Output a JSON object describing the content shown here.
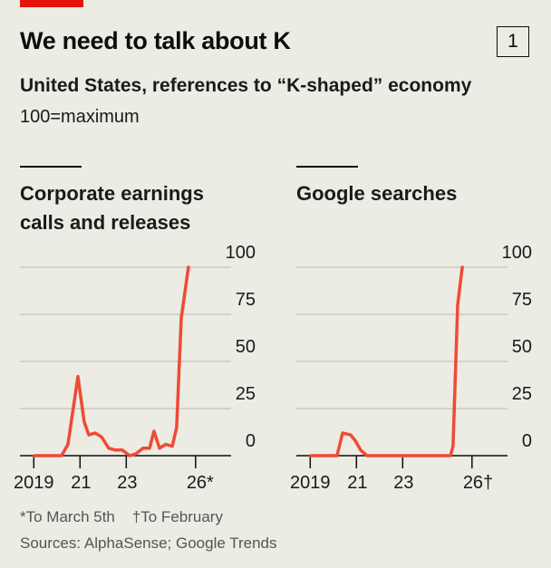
{
  "header": {
    "title": "We need to talk about K",
    "number": "1",
    "subtitle": "United States, references to “K-shaped” economy",
    "unit": "100=maximum"
  },
  "chart_data": [
    {
      "type": "line",
      "title": "Corporate earnings calls and releases",
      "x": [
        2019.03,
        2020.2,
        2020.48,
        2020.91,
        2021.18,
        2021.38,
        2021.65,
        2021.93,
        2022.24,
        2022.52,
        2022.83,
        2023.15,
        2023.42,
        2023.73,
        2024.01,
        2024.2,
        2024.44,
        2024.71,
        2024.99,
        2025.18,
        2025.38,
        2025.69
      ],
      "series": [
        {
          "color": "#ef4b33",
          "values": [
            0,
            0,
            6,
            42,
            18,
            11,
            12,
            10,
            4,
            3,
            3,
            0,
            1,
            4,
            4,
            13,
            4,
            6,
            5,
            15,
            73,
            100
          ]
        }
      ],
      "xlim": [
        2018.4,
        2026.36
      ],
      "xticks": [
        {
          "value": 2019,
          "label": "2019"
        },
        {
          "value": 2021,
          "label": "21"
        },
        {
          "value": 2023,
          "label": "23"
        },
        {
          "value": 2026,
          "label": "26*"
        }
      ],
      "ylim": [
        0,
        100
      ],
      "yticks": [
        0,
        25,
        50,
        75,
        100
      ],
      "grid": true
    },
    {
      "type": "line",
      "title": "Google searches",
      "x": [
        2019.03,
        2020.16,
        2020.4,
        2020.75,
        2020.95,
        2021.18,
        2021.46,
        2025.07,
        2025.18,
        2025.38,
        2025.58
      ],
      "series": [
        {
          "color": "#ef4b33",
          "values": [
            0,
            0,
            12,
            11,
            8,
            3,
            0,
            0,
            5,
            80,
            100
          ]
        }
      ],
      "xlim": [
        2018.4,
        2026.36
      ],
      "xticks": [
        {
          "value": 2019,
          "label": "2019"
        },
        {
          "value": 2021,
          "label": "21"
        },
        {
          "value": 2023,
          "label": "23"
        },
        {
          "value": 2026,
          "label": "26†"
        }
      ],
      "ylim": [
        0,
        100
      ],
      "yticks": [
        0,
        25,
        50,
        75,
        100
      ],
      "grid": true
    }
  ],
  "footer": {
    "notes": [
      "*To March 5th",
      "†To February"
    ],
    "source": "Sources: AlphaSense; Google Trends"
  }
}
